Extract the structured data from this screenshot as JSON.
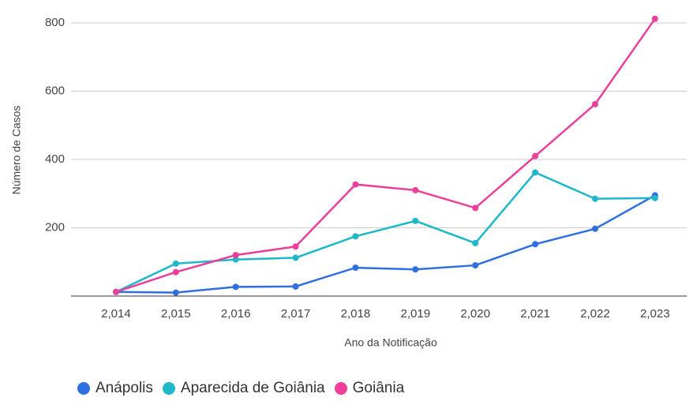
{
  "chart_data": {
    "type": "line",
    "y_label": "Número de Casos",
    "x_label": "Ano da Notificação",
    "x": [
      2014,
      2015,
      2016,
      2017,
      2018,
      2019,
      2020,
      2021,
      2022,
      2023
    ],
    "xlim": [
      2013.25,
      2023.53
    ],
    "xticks": [
      {
        "value": 2014,
        "label": "2,014"
      },
      {
        "value": 2015,
        "label": "2,015"
      },
      {
        "value": 2016,
        "label": "2,016"
      },
      {
        "value": 2017,
        "label": "2,017"
      },
      {
        "value": 2018,
        "label": "2,018"
      },
      {
        "value": 2019,
        "label": "2,019"
      },
      {
        "value": 2020,
        "label": "2,020"
      },
      {
        "value": 2021,
        "label": "2,021"
      },
      {
        "value": 2022,
        "label": "2,022"
      },
      {
        "value": 2023,
        "label": "2,023"
      }
    ],
    "ylim": [
      0,
      800
    ],
    "yticks": [
      200,
      400,
      600,
      800
    ],
    "grid": true,
    "series": [
      {
        "name": "Anápolis",
        "color": "#2f6fe0",
        "values": [
          12,
          10,
          27,
          28,
          83,
          78,
          90,
          152,
          197,
          295
        ]
      },
      {
        "name": "Aparecida de Goiânia",
        "color": "#1fb8c9",
        "values": [
          12,
          95,
          107,
          112,
          175,
          220,
          155,
          362,
          285,
          287
        ]
      },
      {
        "name": "Goiânia",
        "color": "#ec3f9c",
        "values": [
          12,
          70,
          120,
          145,
          327,
          310,
          258,
          410,
          562,
          812
        ]
      }
    ]
  }
}
